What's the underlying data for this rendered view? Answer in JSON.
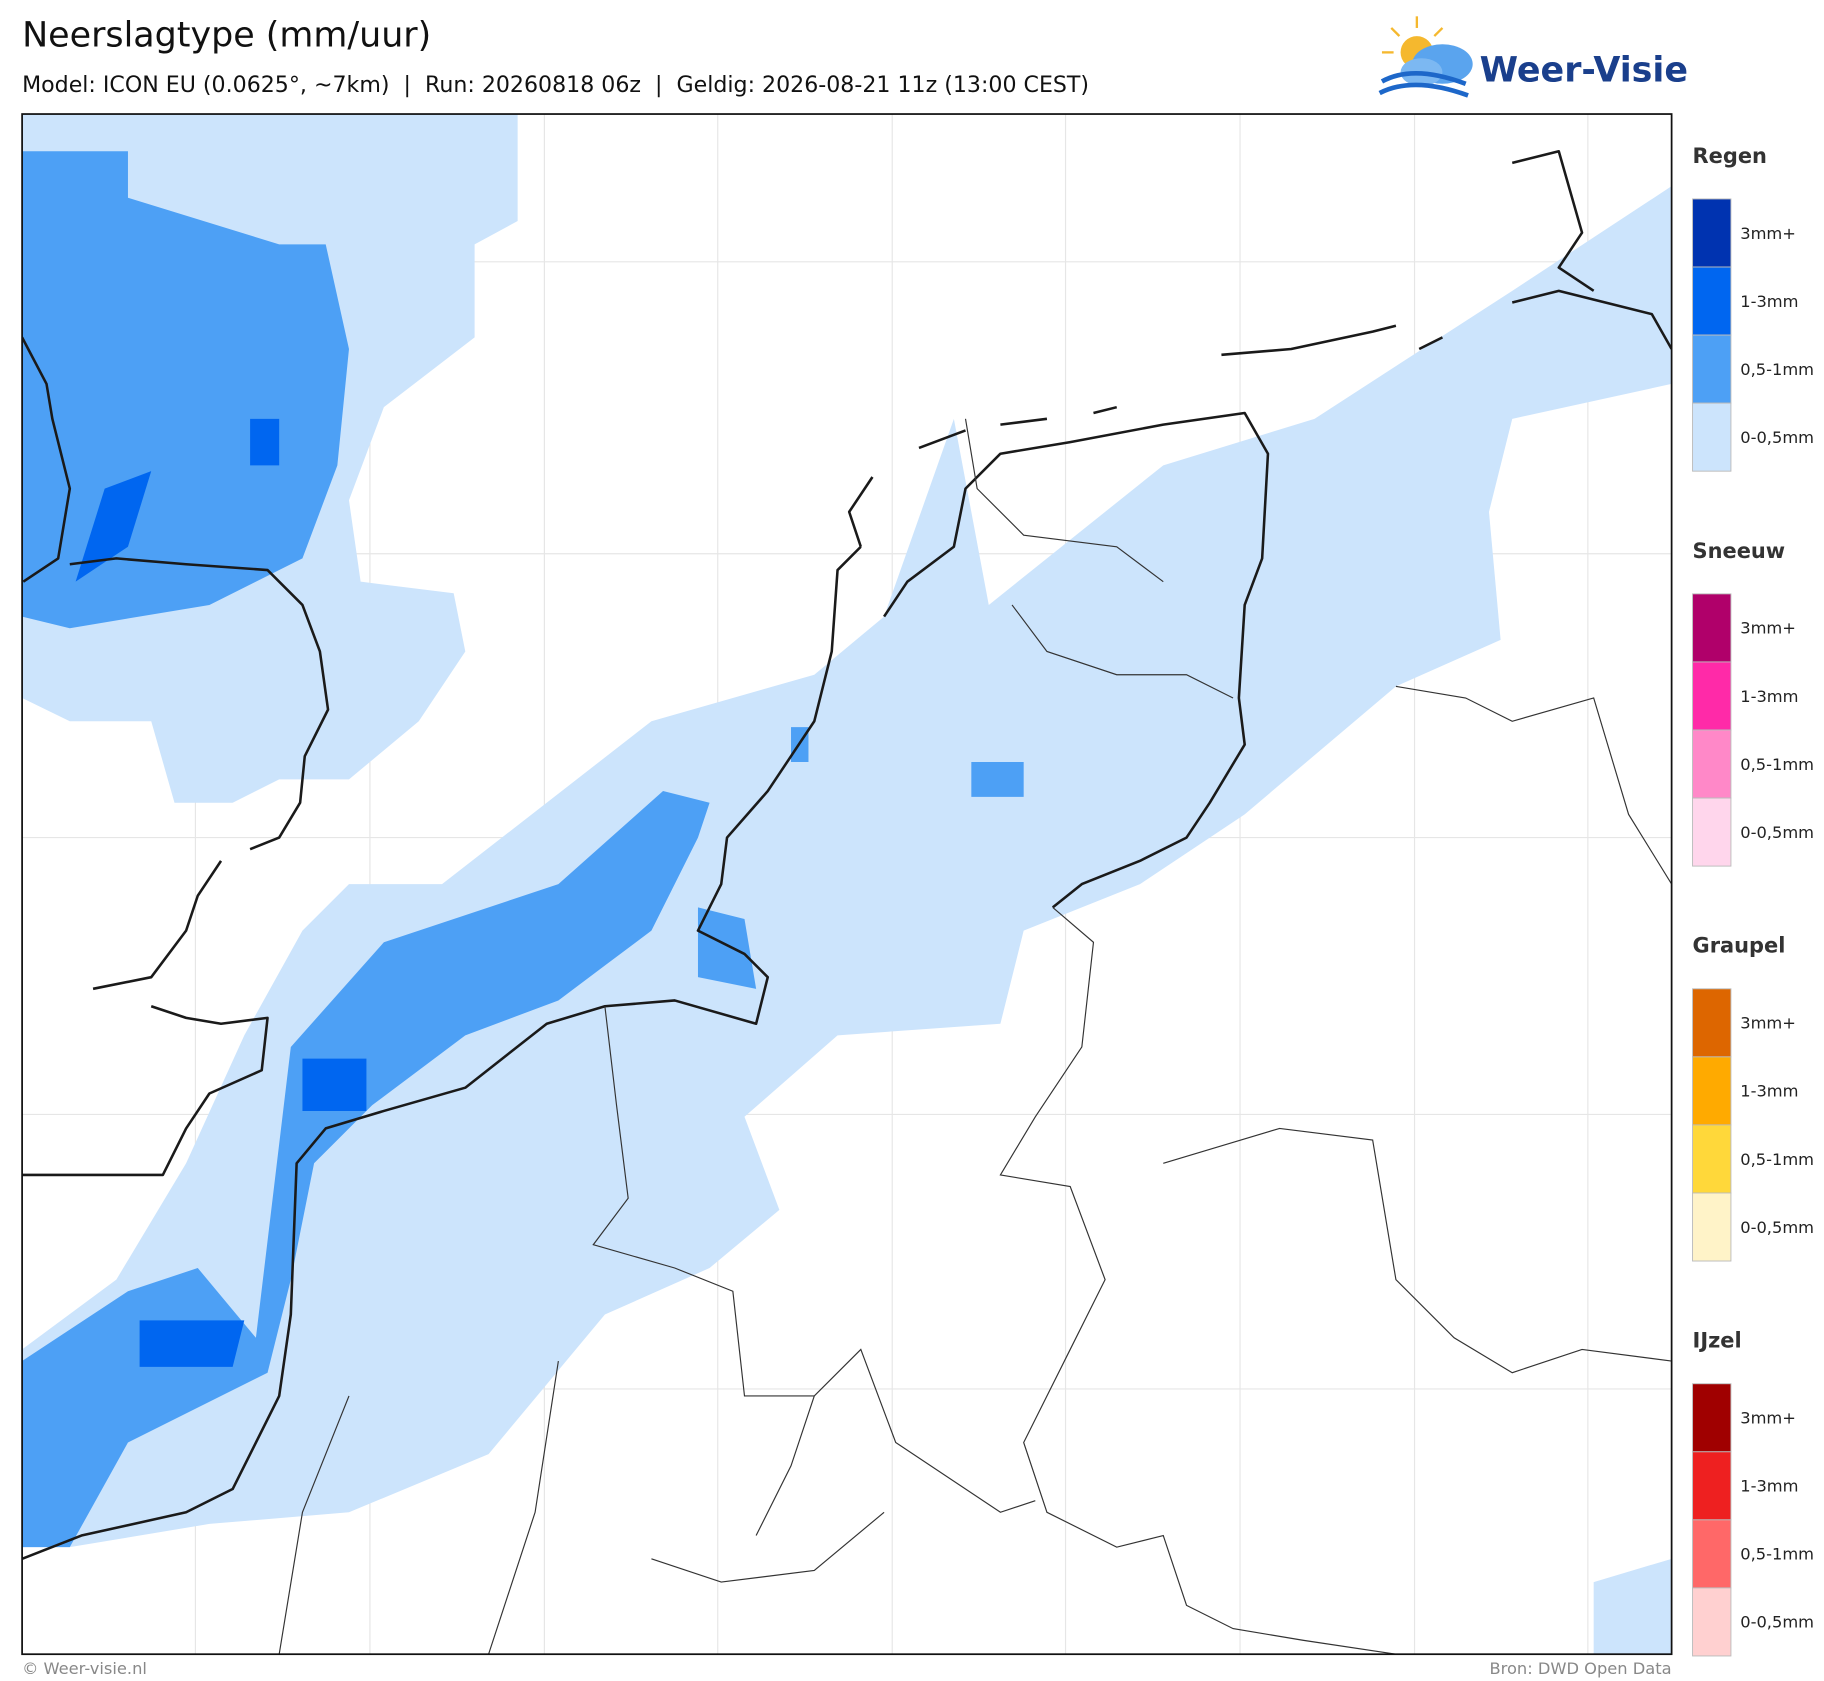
{
  "header": {
    "title": "Neerslagtype (mm/uur)",
    "subtitle": "Model: ICON EU (0.0625°, ~7km)  |  Run: 20260818 06z  |  Geldig: 2026-08-21 11z (13:00 CEST)",
    "logo": "Weer-Visie"
  },
  "legend": [
    {
      "title": "Regen",
      "items": [
        {
          "label": "3mm+",
          "color": "#0033b0"
        },
        {
          "label": "1-3mm",
          "color": "#0066f0"
        },
        {
          "label": "0,5-1mm",
          "color": "#4da0f5"
        },
        {
          "label": "0-0,5mm",
          "color": "#cce4fc"
        }
      ]
    },
    {
      "title": "Sneeuw",
      "items": [
        {
          "label": "3mm+",
          "color": "#b0006a"
        },
        {
          "label": "1-3mm",
          "color": "#ff2aa8"
        },
        {
          "label": "0,5-1mm",
          "color": "#ff88c8"
        },
        {
          "label": "0-0,5mm",
          "color": "#ffd6ec"
        }
      ]
    },
    {
      "title": "Graupel",
      "items": [
        {
          "label": "3mm+",
          "color": "#dd6600"
        },
        {
          "label": "1-3mm",
          "color": "#ffaa00"
        },
        {
          "label": "0,5-1mm",
          "color": "#ffd83a"
        },
        {
          "label": "0-0,5mm",
          "color": "#fff3c8"
        }
      ]
    },
    {
      "title": "IJzel",
      "items": [
        {
          "label": "3mm+",
          "color": "#a00000"
        },
        {
          "label": "1-3mm",
          "color": "#ee2020"
        },
        {
          "label": "0,5-1mm",
          "color": "#ff6868"
        },
        {
          "label": "0-0,5mm",
          "color": "#ffd0d0"
        }
      ]
    }
  ],
  "footer": {
    "left": "© Weer-visie.nl",
    "right": "Bron: DWD Open Data"
  }
}
